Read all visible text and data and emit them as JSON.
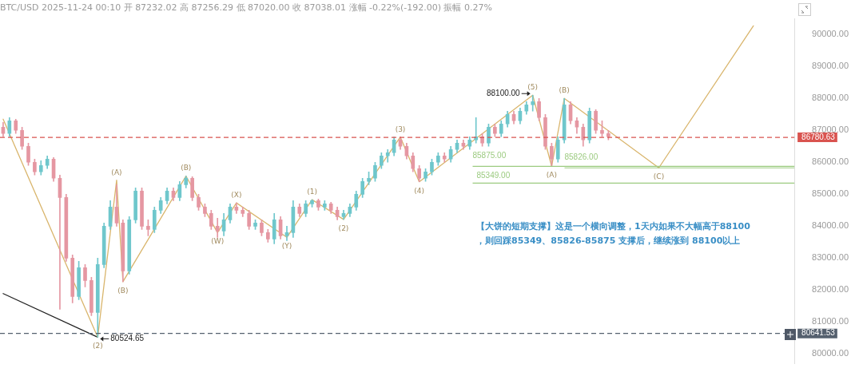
{
  "chart_data": {
    "type": "candlestick",
    "title": "BTC/USD 2025-11-24 00:10 开 87232.02 高 87256.29 低 87020.00 收 87038.01 涨幅 -0.22%(-192.00) 振幅 0.27%",
    "categories": [
      null,
      null,
      null,
      null,
      null,
      null,
      null,
      null,
      null,
      null,
      null,
      null,
      null,
      null,
      null,
      null,
      null,
      null,
      null,
      null,
      null,
      null,
      null,
      null,
      null,
      null,
      null,
      null,
      null,
      null,
      null,
      null,
      null,
      null,
      null,
      null,
      null,
      null,
      null,
      null,
      null,
      null,
      null,
      null,
      null,
      null,
      null,
      null,
      null,
      null,
      null,
      null,
      null,
      null,
      null,
      null,
      null,
      null,
      null,
      null,
      null,
      null,
      null,
      null,
      null,
      null,
      null,
      null,
      null,
      null,
      null,
      null,
      null,
      null,
      null,
      null,
      null,
      null,
      null,
      null,
      null,
      null,
      null,
      null,
      null,
      null,
      null,
      null,
      null,
      null,
      null,
      null,
      null,
      null,
      null,
      null,
      null,
      null,
      null,
      null,
      null,
      null,
      null,
      null,
      null,
      null,
      null,
      null,
      null,
      null,
      null,
      null,
      null,
      null,
      null,
      null,
      null,
      null,
      null,
      null,
      null,
      null,
      null,
      null,
      null,
      null
    ],
    "ohlc": [
      [
        87100,
        87250,
        86800,
        86900
      ],
      [
        86900,
        87400,
        86800,
        87300
      ],
      [
        87300,
        87350,
        86900,
        87000
      ],
      [
        87000,
        87100,
        86400,
        86500
      ],
      [
        86500,
        86600,
        85900,
        86000
      ],
      [
        86000,
        86100,
        85600,
        85700
      ],
      [
        85700,
        86050,
        85600,
        85900
      ],
      [
        85900,
        86200,
        85800,
        86100
      ],
      [
        86100,
        86150,
        85400,
        85500
      ],
      [
        85500,
        85600,
        81400,
        84900
      ],
      [
        84900,
        85000,
        82900,
        83000
      ],
      [
        83000,
        83100,
        81600,
        81800
      ],
      [
        81800,
        82900,
        81700,
        82700
      ],
      [
        82700,
        82800,
        82100,
        82300
      ],
      [
        82300,
        82400,
        81200,
        81300
      ],
      [
        81300,
        83000,
        80524.65,
        82800
      ],
      [
        82800,
        84100,
        82700,
        84000
      ],
      [
        84000,
        84800,
        83900,
        84600
      ],
      [
        84600,
        85300,
        84000,
        84100
      ],
      [
        84100,
        84200,
        82260,
        82600
      ],
      [
        82600,
        84300,
        82500,
        84200
      ],
      [
        84200,
        85200,
        84100,
        85100
      ],
      [
        85100,
        85200,
        83900,
        84000
      ],
      [
        84000,
        84200,
        83700,
        83900
      ],
      [
        83900,
        84600,
        83800,
        84500
      ],
      [
        84500,
        84900,
        84400,
        84800
      ],
      [
        84800,
        85200,
        84700,
        85100
      ],
      [
        85100,
        85200,
        84800,
        84900
      ],
      [
        84900,
        85400,
        84800,
        85300
      ],
      [
        85300,
        85570,
        85200,
        85500
      ],
      [
        85500,
        85550,
        84800,
        84900
      ],
      [
        84900,
        85000,
        84500,
        84600
      ],
      [
        84600,
        84700,
        84300,
        84400
      ],
      [
        84400,
        84500,
        83900,
        84000
      ],
      [
        84000,
        84250,
        83650,
        83850
      ],
      [
        83850,
        84400,
        83700,
        84200
      ],
      [
        84200,
        84700,
        84100,
        84600
      ],
      [
        84600,
        84730,
        84400,
        84500
      ],
      [
        84500,
        84600,
        84300,
        84400
      ],
      [
        84400,
        84500,
        83900,
        84000
      ],
      [
        84000,
        84200,
        83900,
        84100
      ],
      [
        84100,
        84200,
        83700,
        83800
      ],
      [
        83800,
        83900,
        83500,
        83600
      ],
      [
        83600,
        84400,
        83450,
        84200
      ],
      [
        84200,
        84300,
        83600,
        83700
      ],
      [
        83700,
        84000,
        83550,
        83800
      ],
      [
        83800,
        84800,
        83650,
        84600
      ],
      [
        84600,
        84700,
        84300,
        84400
      ],
      [
        84400,
        84800,
        84300,
        84700
      ],
      [
        84700,
        84830,
        84600,
        84800
      ],
      [
        84800,
        84850,
        84500,
        84600
      ],
      [
        84600,
        84800,
        84500,
        84700
      ],
      [
        84700,
        84750,
        84400,
        84500
      ],
      [
        84500,
        84600,
        84200,
        84300
      ],
      [
        84300,
        84500,
        84210,
        84400
      ],
      [
        84400,
        84700,
        84300,
        84600
      ],
      [
        84600,
        85100,
        84500,
        85000
      ],
      [
        85000,
        85500,
        84900,
        85400
      ],
      [
        85400,
        85700,
        85300,
        85500
      ],
      [
        85500,
        86000,
        85400,
        85900
      ],
      [
        85900,
        86300,
        85800,
        86200
      ],
      [
        86200,
        86400,
        86000,
        86300
      ],
      [
        86300,
        86790,
        86200,
        86700
      ],
      [
        86700,
        86790,
        86400,
        86500
      ],
      [
        86500,
        86600,
        86100,
        86200
      ],
      [
        86200,
        86300,
        85700,
        85800
      ],
      [
        85800,
        85900,
        85390,
        85500
      ],
      [
        85500,
        85800,
        85400,
        85700
      ],
      [
        85700,
        86100,
        85600,
        86000
      ],
      [
        86000,
        86300,
        85900,
        86200
      ],
      [
        86200,
        86300,
        86000,
        86100
      ],
      [
        86100,
        86500,
        86000,
        86400
      ],
      [
        86400,
        86700,
        86300,
        86600
      ],
      [
        86600,
        86700,
        86400,
        86500
      ],
      [
        86500,
        86800,
        86400,
        86700
      ],
      [
        86700,
        87400,
        86600,
        86800
      ],
      [
        86800,
        86900,
        86500,
        86600
      ],
      [
        86600,
        87200,
        86500,
        87100
      ],
      [
        87100,
        87200,
        86800,
        86900
      ],
      [
        86900,
        87300,
        86800,
        87200
      ],
      [
        87200,
        87600,
        87100,
        87500
      ],
      [
        87500,
        87600,
        87200,
        87300
      ],
      [
        87300,
        87700,
        87200,
        87600
      ],
      [
        87600,
        87900,
        87500,
        87800
      ],
      [
        87800,
        88100,
        87600,
        87900
      ],
      [
        87900,
        88000,
        87300,
        87400
      ],
      [
        87400,
        87500,
        86400,
        86500
      ],
      [
        86500,
        86600,
        85875,
        86100
      ],
      [
        86100,
        86800,
        86000,
        86700
      ],
      [
        86700,
        88000,
        86600,
        87800
      ],
      [
        87800,
        87900,
        87200,
        87300
      ],
      [
        87300,
        87400,
        86900,
        87100
      ],
      [
        87100,
        87200,
        86500,
        86700
      ],
      [
        86700,
        87700,
        86600,
        87600
      ],
      [
        87600,
        87650,
        86900,
        87000
      ],
      [
        87000,
        87300,
        86800,
        86900
      ],
      [
        86900,
        87000,
        86700,
        86800
      ],
      null,
      null,
      null,
      null,
      null,
      null,
      null,
      null,
      null,
      null,
      null,
      null,
      null,
      null,
      null,
      null,
      null,
      null,
      null,
      null,
      null,
      null,
      null,
      null,
      null,
      null,
      null,
      null,
      null
    ],
    "colors": [
      "#e597a2",
      "#6fc7cc",
      "#e597a2",
      "#e597a2",
      "#e597a2",
      "#e597a2",
      "#6fc7cc",
      "#6fc7cc",
      "#e597a2",
      "#e597a2",
      "#e597a2",
      "#e597a2",
      "#6fc7cc",
      "#e597a2",
      "#e597a2",
      "#6fc7cc",
      "#6fc7cc",
      "#6fc7cc",
      "#e597a2",
      "#e597a2",
      "#6fc7cc",
      "#6fc7cc",
      "#e597a2",
      "#e597a2",
      "#6fc7cc",
      "#6fc7cc",
      "#6fc7cc",
      "#e597a2",
      "#6fc7cc",
      "#6fc7cc",
      "#e597a2",
      "#e597a2",
      "#e597a2",
      "#e597a2",
      "#e597a2",
      "#6fc7cc",
      "#6fc7cc",
      "#e597a2",
      "#e597a2",
      "#e597a2",
      "#6fc7cc",
      "#e597a2",
      "#e597a2",
      "#6fc7cc",
      "#e597a2",
      "#6fc7cc",
      "#6fc7cc",
      "#e597a2",
      "#6fc7cc",
      "#6fc7cc",
      "#e597a2",
      "#6fc7cc",
      "#e597a2",
      "#e597a2",
      "#6fc7cc",
      "#6fc7cc",
      "#6fc7cc",
      "#6fc7cc",
      "#6fc7cc",
      "#6fc7cc",
      "#6fc7cc",
      "#6fc7cc",
      "#6fc7cc",
      "#e597a2",
      "#e597a2",
      "#e597a2",
      "#e597a2",
      "#6fc7cc",
      "#6fc7cc",
      "#6fc7cc",
      "#e597a2",
      "#6fc7cc",
      "#6fc7cc",
      "#e597a2",
      "#6fc7cc",
      "#6fc7cc",
      "#e597a2",
      "#6fc7cc",
      "#e597a2",
      "#6fc7cc",
      "#6fc7cc",
      "#e597a2",
      "#6fc7cc",
      "#6fc7cc",
      "#6fc7cc",
      "#e597a2",
      "#e597a2",
      "#e597a2",
      "#6fc7cc",
      "#6fc7cc",
      "#e597a2",
      "#e597a2",
      "#e597a2",
      "#6fc7cc",
      "#e597a2",
      "#e597a2",
      "#e597a2",
      null,
      null,
      null,
      null,
      null,
      null,
      null,
      null,
      null,
      null,
      null,
      null,
      null,
      null,
      null,
      null,
      null,
      null,
      null,
      null,
      null,
      null,
      null,
      null,
      null,
      null,
      null,
      null,
      null
    ],
    "series": [
      {
        "type": "line",
        "color": "#d9b56c",
        "values": [
          87350,
          null,
          null,
          null,
          null,
          null,
          null,
          null,
          null,
          null,
          null,
          null,
          null,
          null,
          null,
          80524.65,
          null,
          null,
          85440,
          82260,
          null,
          null,
          null,
          null,
          null,
          null,
          null,
          null,
          null,
          85570,
          null,
          null,
          null,
          null,
          83800,
          null,
          null,
          84730,
          null,
          null,
          null,
          null,
          null,
          null,
          null,
          83650,
          null,
          null,
          null,
          84830,
          null,
          null,
          null,
          null,
          84210,
          null,
          null,
          null,
          null,
          null,
          null,
          null,
          null,
          86790,
          null,
          null,
          85390,
          null,
          null,
          null,
          null,
          null,
          null,
          null,
          null,
          null,
          null,
          null,
          null,
          null,
          null,
          null,
          null,
          null,
          88100,
          null,
          null,
          85875,
          null,
          88000,
          null,
          null,
          null,
          null,
          null,
          null,
          null,
          null,
          null,
          null,
          null,
          null,
          null,
          null,
          85826,
          null,
          null,
          null,
          null,
          null,
          null,
          null,
          null,
          null,
          null,
          null,
          null,
          null,
          null,
          90270,
          null,
          null,
          null,
          null,
          null,
          null
        ]
      },
      {
        "type": "line",
        "color": "#222222",
        "values": [
          81890,
          null,
          null,
          null,
          null,
          null,
          null,
          null,
          null,
          null,
          null,
          null,
          null,
          null,
          null,
          80524.65,
          null,
          null,
          null,
          null,
          null,
          null,
          null,
          null,
          null,
          null,
          null,
          null,
          null,
          null,
          null,
          null,
          null,
          null,
          null,
          null,
          null,
          null,
          null,
          null,
          null,
          null,
          null,
          null,
          null,
          null,
          null,
          null,
          null,
          null,
          null,
          null,
          null,
          null,
          null,
          null,
          null,
          null,
          null,
          null,
          null,
          null,
          null,
          null,
          null,
          null,
          null,
          null,
          null,
          null,
          null,
          null,
          null,
          null,
          null,
          null,
          null,
          null,
          null,
          null,
          null,
          null,
          null,
          null,
          null,
          null,
          null,
          null,
          null,
          null,
          null,
          null,
          null,
          null,
          null,
          null,
          null,
          null,
          null,
          null,
          null,
          null,
          null,
          null,
          null,
          null,
          null,
          null,
          null,
          null,
          null,
          null,
          null,
          null,
          null,
          null,
          null,
          null,
          null,
          null,
          null,
          null,
          null,
          null,
          null,
          null
        ]
      }
    ],
    "ylim": [
      79700,
      90500
    ],
    "yticks": [
      {
        "value": 80000,
        "label": "80000.00"
      },
      {
        "value": 81000,
        "label": "81000.00"
      },
      {
        "value": 82000,
        "label": "82000.00"
      },
      {
        "value": 83000,
        "label": "83000.00"
      },
      {
        "value": 84000,
        "label": "84000.00"
      },
      {
        "value": 85000,
        "label": "85000.00"
      },
      {
        "value": 86000,
        "label": "86000.00"
      },
      {
        "value": 87000,
        "label": "87000.00"
      },
      {
        "value": 88000,
        "label": "88000.00"
      },
      {
        "value": 89000,
        "label": "89000.00"
      },
      {
        "value": 90000,
        "label": "90000.00"
      }
    ],
    "ref_lines": [
      {
        "axis": "y",
        "value": 86780.63,
        "label": "86780.63",
        "color": "#d9534f",
        "line_style": "dashed"
      },
      {
        "axis": "y",
        "value": 80641.53,
        "label": "80641.53",
        "color": "#55606e",
        "line_style": "dashed"
      },
      {
        "axis": "y",
        "value": 85875,
        "label": "85875.00",
        "color": "#9ccb80",
        "line_style": "solid"
      },
      {
        "axis": "y",
        "value": 85826,
        "label": "85826.00",
        "color": "#9ccb80",
        "line_style": "solid"
      },
      {
        "axis": "y",
        "value": 85349,
        "label": "85349.00",
        "color": "#9ccb80",
        "line_style": "solid"
      }
    ],
    "annotations": [
      "88100.00",
      "80524.65",
      "(2)",
      "(A)",
      "(B)",
      "(B)",
      "(W)",
      "(X)",
      "(Y)",
      "(1)",
      "(2)",
      "(3)",
      "(4)",
      "(5)",
      "(A)",
      "(B)",
      "(C)",
      "【大饼的短期支撑】这是一个横向调整，1天内如果不大幅高于88100",
      "，则回踩85349、85826-85875 支撑后，继续涨到 88100以上"
    ],
    "grid": false,
    "legend": false,
    "marker": "none",
    "tick_labels": "y"
  }
}
